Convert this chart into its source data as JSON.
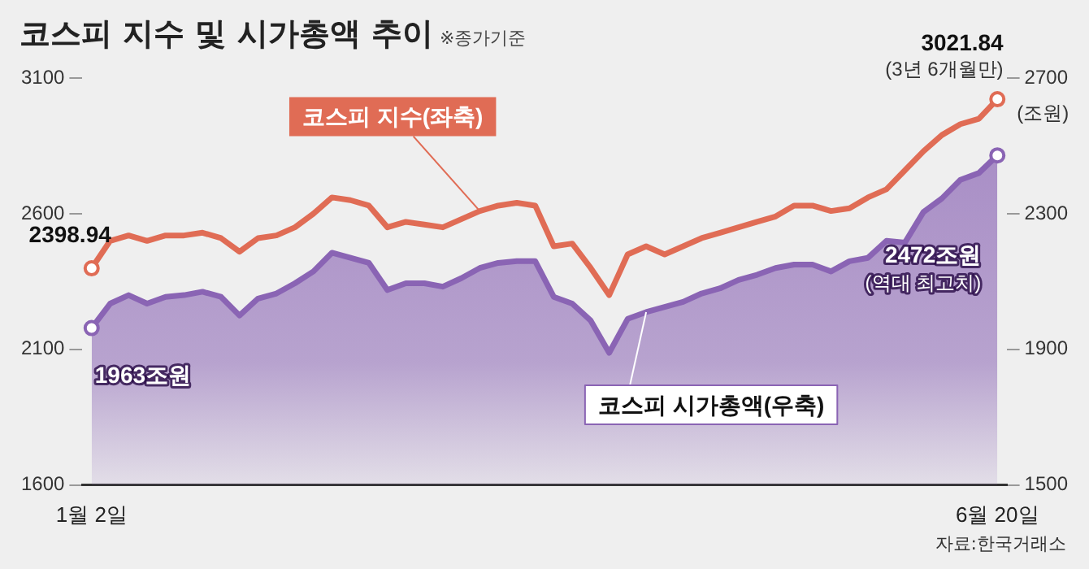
{
  "chart_data": {
    "type": "line",
    "title": "코스피 지수 및 시가총액 추이",
    "subtitle": "※종가기준",
    "y2label": "(조원)",
    "categories": [
      "1월 2일",
      null,
      null,
      null,
      null,
      null,
      null,
      null,
      null,
      null,
      null,
      null,
      null,
      null,
      null,
      null,
      null,
      null,
      null,
      null,
      null,
      null,
      null,
      null,
      null,
      null,
      null,
      null,
      null,
      null,
      null,
      null,
      null,
      null,
      null,
      null,
      null,
      null,
      null,
      null,
      null,
      null,
      null,
      null,
      null,
      null,
      null,
      null,
      null,
      "6월 20일"
    ],
    "series": [
      {
        "name": "코스피 지수(좌축)",
        "type": "line",
        "color": "#e06c55",
        "values": [
          2398.94,
          2500,
          2520,
          2500,
          2520,
          2520,
          2530,
          2510,
          2460,
          2510,
          2520,
          2550,
          2600,
          2660,
          2650,
          2630,
          2550,
          2570,
          2560,
          2550,
          2580,
          2610,
          2630,
          2640,
          2630,
          2480,
          2490,
          2400,
          2300,
          2450,
          2480,
          2450,
          2480,
          2510,
          2530,
          2550,
          2570,
          2590,
          2630,
          2630,
          2610,
          2620,
          2660,
          2690,
          2760,
          2830,
          2890,
          2930,
          2950,
          3021.84
        ]
      },
      {
        "name": "코스피 시가총액(우축)",
        "type": "area",
        "axis": "y2",
        "color": "#8a64b4",
        "values": [
          1963,
          2035,
          2060,
          2035,
          2055,
          2060,
          2070,
          2055,
          2000,
          2050,
          2065,
          2095,
          2130,
          2185,
          2170,
          2155,
          2075,
          2095,
          2095,
          2085,
          2110,
          2140,
          2155,
          2160,
          2160,
          2055,
          2035,
          1985,
          1890,
          1990,
          2010,
          2025,
          2040,
          2065,
          2080,
          2105,
          2120,
          2140,
          2150,
          2150,
          2130,
          2160,
          2170,
          2220,
          2215,
          2305,
          2345,
          2400,
          2420,
          2472
        ]
      }
    ],
    "ylim": [
      1600,
      3100
    ],
    "yticks": [
      1600,
      2100,
      2600,
      3100
    ],
    "y2lim": [
      1500,
      2700
    ],
    "y2ticks": [
      1500,
      1900,
      2300,
      2700
    ],
    "grid": false,
    "legend": false,
    "annotations": [
      {
        "text": "3021.84",
        "x": "6월 20일",
        "y": 3021.84
      },
      {
        "text": "(3년 6개월만)",
        "x": "6월 20일",
        "y": 3021.84
      },
      {
        "text": "2398.94",
        "x": "1월 2일",
        "y": 2398.94
      },
      {
        "text": "1963조원",
        "x": "1월 2일",
        "y": 1963
      },
      {
        "text": "2472조원",
        "x": "6월 20일",
        "y": 2472
      },
      {
        "text": "(역대 최고치)",
        "x": "6월 20일",
        "y": 2472
      },
      "자료:한국거래소"
    ]
  }
}
